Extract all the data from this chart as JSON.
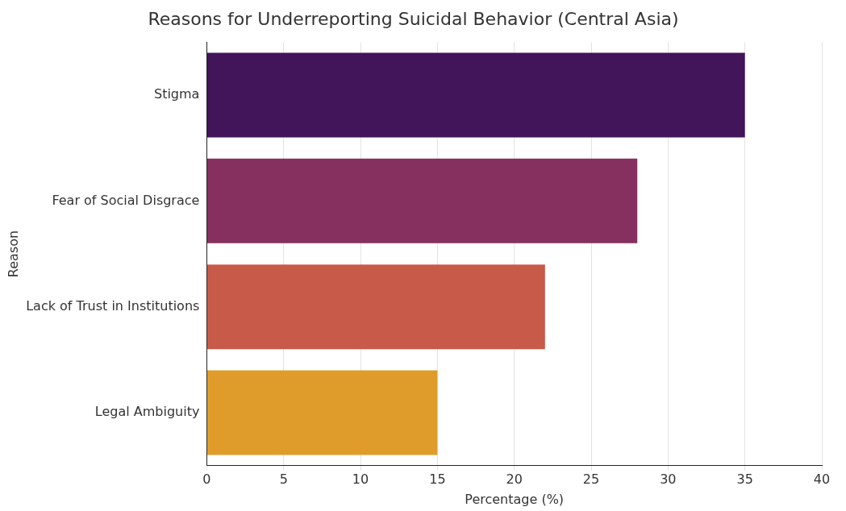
{
  "chart_data": {
    "type": "bar",
    "orientation": "horizontal",
    "title": "Reasons for Underreporting Suicidal Behavior (Central Asia)",
    "xlabel": "Percentage (%)",
    "ylabel": "Reason",
    "categories": [
      "Stigma",
      "Fear of Social Disgrace",
      "Lack of Trust in Institutions",
      "Legal Ambiguity"
    ],
    "values": [
      35,
      28,
      22,
      15
    ],
    "colors": [
      "#42145a",
      "#86305f",
      "#c85a4a",
      "#e09c2a"
    ],
    "xlim": [
      0,
      40
    ],
    "xticks": [
      0,
      5,
      10,
      15,
      20,
      25,
      30,
      35,
      40
    ],
    "grid": "x",
    "legend": false
  }
}
